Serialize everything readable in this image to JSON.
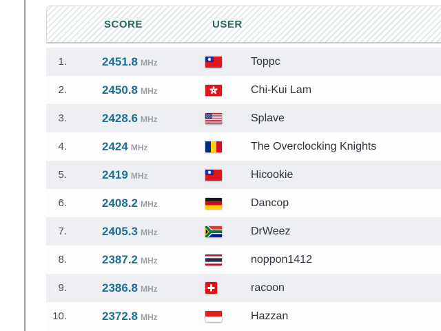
{
  "table": {
    "headers": {
      "score": "SCORE",
      "user": "USER"
    },
    "rows": [
      {
        "rank": "1.",
        "score": "2451.8",
        "unit": "MHz",
        "flag": "taiwan",
        "user": "Toppc"
      },
      {
        "rank": "2.",
        "score": "2450.8",
        "unit": "MHz",
        "flag": "hong-kong",
        "user": "Chi-Kui Lam"
      },
      {
        "rank": "3.",
        "score": "2428.6",
        "unit": "MHz",
        "flag": "usa",
        "user": "Splave"
      },
      {
        "rank": "4.",
        "score": "2424",
        "unit": "MHz",
        "flag": "romania",
        "user": "The Overclocking Knights"
      },
      {
        "rank": "5.",
        "score": "2419",
        "unit": "MHz",
        "flag": "taiwan",
        "user": "Hicookie"
      },
      {
        "rank": "6.",
        "score": "2408.2",
        "unit": "MHz",
        "flag": "germany",
        "user": "Dancop"
      },
      {
        "rank": "7.",
        "score": "2405.3",
        "unit": "MHz",
        "flag": "south-africa",
        "user": "DrWeez"
      },
      {
        "rank": "8.",
        "score": "2387.2",
        "unit": "MHz",
        "flag": "thailand",
        "user": "noppon1412"
      },
      {
        "rank": "9.",
        "score": "2386.8",
        "unit": "MHz",
        "flag": "switzerland",
        "user": "racoon"
      },
      {
        "rank": "10.",
        "score": "2372.8",
        "unit": "MHz",
        "flag": "indonesia",
        "user": "Hazzan"
      }
    ]
  },
  "colors": {
    "header_text": "#266a5e",
    "score_text": "#1c7191",
    "unit_text": "#9aa0a5",
    "rank_text": "#4b4b4b",
    "user_text": "#2f333a",
    "row_alt_background": "#edeff2",
    "row_background": "#fdfdfe",
    "header_border": "#c3c7ca"
  }
}
